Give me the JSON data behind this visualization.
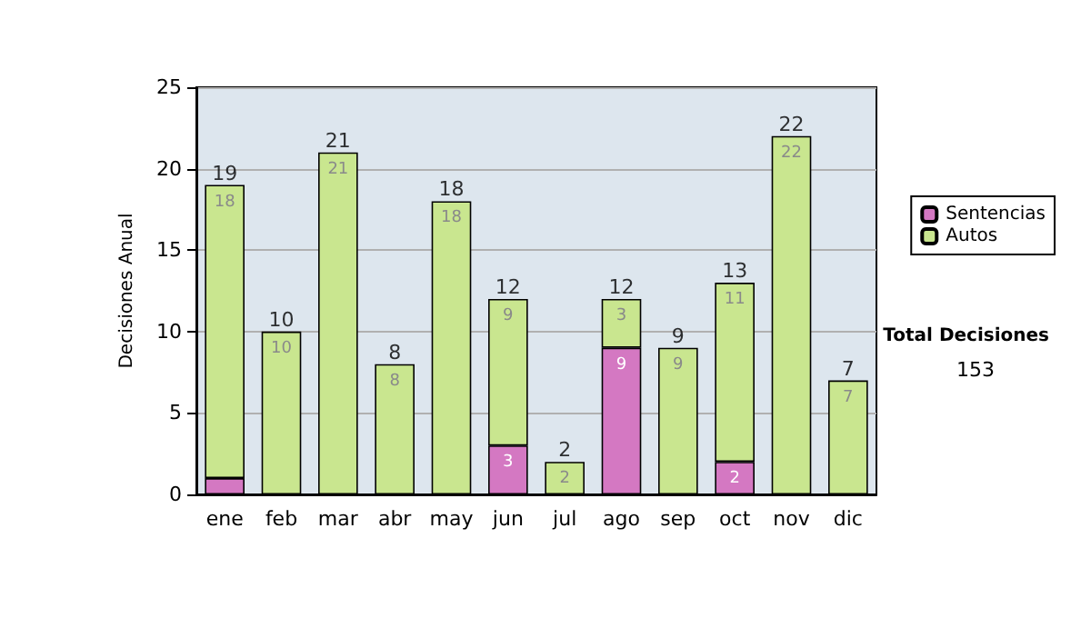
{
  "chart_data": {
    "type": "bar",
    "stacked": true,
    "ylabel": "Decisiones Anual",
    "categories": [
      "ene",
      "feb",
      "mar",
      "abr",
      "may",
      "jun",
      "jul",
      "ago",
      "sep",
      "oct",
      "nov",
      "dic"
    ],
    "series": [
      {
        "name": "Sentencias",
        "color": "#d478c2",
        "values": [
          1,
          0,
          0,
          0,
          0,
          3,
          0,
          9,
          0,
          2,
          0,
          0
        ],
        "value_labels": [
          null,
          null,
          null,
          null,
          null,
          "3",
          null,
          "9",
          null,
          "2",
          null,
          null
        ]
      },
      {
        "name": "Autos",
        "color": "#c9e68f",
        "values": [
          18,
          10,
          21,
          8,
          18,
          9,
          2,
          3,
          9,
          11,
          22,
          7
        ],
        "value_labels": [
          "18",
          "10",
          "21",
          "8",
          "18",
          "9",
          "2",
          "3",
          "9",
          "11",
          "22",
          "7"
        ]
      }
    ],
    "totals": [
      "19",
      "10",
      "21",
      "8",
      "18",
      "12",
      "2",
      "12",
      "9",
      "13",
      "22",
      "7"
    ],
    "ylim": [
      0,
      25
    ],
    "yticks": [
      0,
      5,
      10,
      15,
      20,
      25
    ],
    "grid": "y",
    "legend": "right",
    "annotations": [
      "Total Decisiones",
      "153"
    ]
  }
}
